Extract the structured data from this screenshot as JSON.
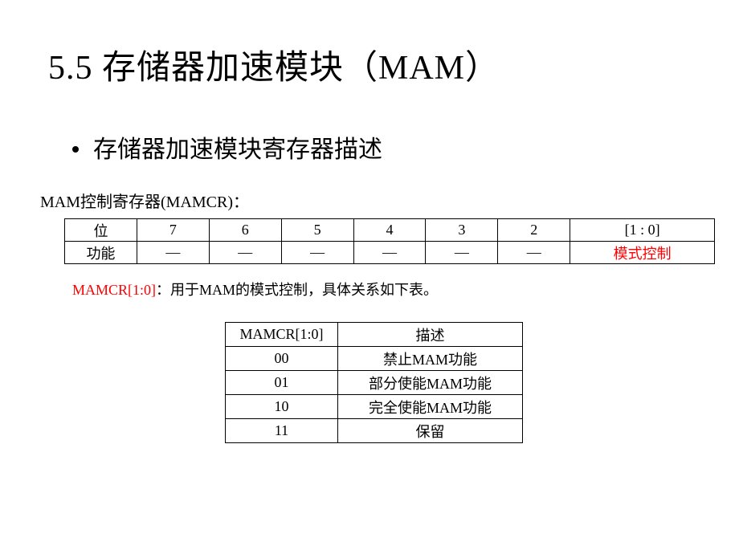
{
  "title": "5.5  存储器加速模块（MAM）",
  "subtitle": "存储器加速模块寄存器描述",
  "reg_label": "MAM控制寄存器(MAMCR)：",
  "table1": {
    "row1": [
      "位",
      "7",
      "6",
      "5",
      "4",
      "3",
      "2",
      "[1 : 0]"
    ],
    "row2": [
      "功能",
      "—",
      "—",
      "—",
      "—",
      "—",
      "—",
      "模式控制"
    ]
  },
  "note_lead": "MAMCR[1:0]",
  "note_rest": "：用于MAM的模式控制，具体关系如下表。",
  "table2": {
    "header": [
      "MAMCR[1:0]",
      "描述"
    ],
    "rows": [
      [
        "00",
        "禁止MAM功能"
      ],
      [
        "01",
        "部分使能MAM功能"
      ],
      [
        "10",
        "完全使能MAM功能"
      ],
      [
        "11",
        "保留"
      ]
    ]
  }
}
